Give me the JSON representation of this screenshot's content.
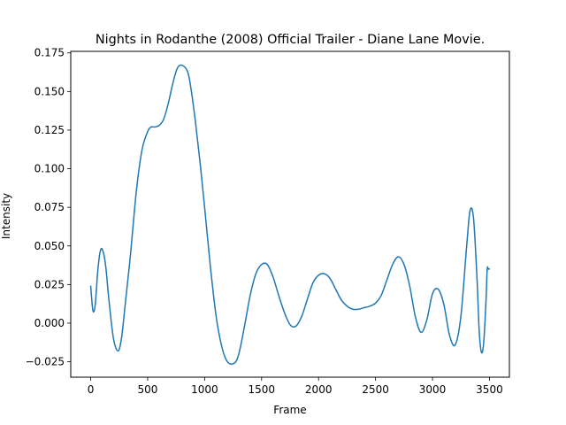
{
  "chart_data": {
    "type": "line",
    "title": "Nights in Rodanthe (2008) Official Trailer - Diane Lane Movie.",
    "xlabel": "Frame",
    "ylabel": "Intensity",
    "xlim": [
      -175,
      3675
    ],
    "ylim": [
      -0.035,
      0.176
    ],
    "grid": false,
    "x_ticks": [
      0,
      500,
      1000,
      1500,
      2000,
      2500,
      3000,
      3500
    ],
    "y_ticks": [
      -0.025,
      0.0,
      0.025,
      0.05,
      0.075,
      0.1,
      0.125,
      0.15,
      0.175
    ],
    "x_tick_labels": [
      "0",
      "500",
      "1000",
      "1500",
      "2000",
      "2500",
      "3000",
      "3500"
    ],
    "y_tick_labels": [
      "−0.025",
      "0.000",
      "0.025",
      "0.050",
      "0.075",
      "0.100",
      "0.125",
      "0.150",
      "0.175"
    ],
    "series": [
      {
        "color": "#1f77b4",
        "x": [
          0,
          20,
          40,
          60,
          80,
          100,
          130,
          160,
          200,
          240,
          270,
          300,
          350,
          400,
          450,
          500,
          530,
          560,
          600,
          640,
          680,
          720,
          760,
          800,
          850,
          880,
          920,
          960,
          1000,
          1050,
          1100,
          1150,
          1200,
          1260,
          1300,
          1350,
          1400,
          1450,
          1500,
          1550,
          1600,
          1650,
          1700,
          1750,
          1800,
          1850,
          1900,
          1950,
          2000,
          2050,
          2100,
          2150,
          2200,
          2250,
          2300,
          2350,
          2400,
          2450,
          2500,
          2550,
          2600,
          2650,
          2700,
          2750,
          2800,
          2850,
          2900,
          2950,
          3000,
          3050,
          3100,
          3150,
          3200,
          3250,
          3300,
          3330,
          3360,
          3390,
          3410,
          3430,
          3450,
          3470,
          3480,
          3490,
          3500
        ],
        "y": [
          0.024,
          0.008,
          0.012,
          0.032,
          0.045,
          0.048,
          0.038,
          0.015,
          -0.01,
          -0.018,
          -0.01,
          0.01,
          0.045,
          0.085,
          0.112,
          0.124,
          0.127,
          0.127,
          0.128,
          0.132,
          0.142,
          0.155,
          0.165,
          0.167,
          0.163,
          0.152,
          0.13,
          0.104,
          0.075,
          0.037,
          0.005,
          -0.015,
          -0.025,
          -0.026,
          -0.02,
          -0.002,
          0.018,
          0.032,
          0.038,
          0.038,
          0.03,
          0.018,
          0.007,
          -0.001,
          -0.002,
          0.004,
          0.015,
          0.026,
          0.031,
          0.032,
          0.029,
          0.022,
          0.015,
          0.011,
          0.009,
          0.009,
          0.01,
          0.011,
          0.013,
          0.018,
          0.028,
          0.038,
          0.043,
          0.038,
          0.024,
          0.004,
          -0.006,
          0.002,
          0.019,
          0.022,
          0.012,
          -0.008,
          -0.014,
          0.005,
          0.05,
          0.073,
          0.068,
          0.03,
          -0.005,
          -0.019,
          -0.012,
          0.015,
          0.035,
          0.035,
          0.035
        ]
      }
    ]
  }
}
